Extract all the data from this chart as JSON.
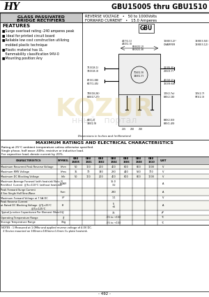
{
  "title": "GBU15005 thru GBU1510",
  "box1_title": "GLASS PASSIVATED",
  "box1_sub": "BRIDGE RECTIFIERS",
  "box2_line1": "REVERSE VOLTAGE   •   50 to 1000Volts",
  "box2_line2": "FORWARD CURRENT   •   15.0 Amperes",
  "features_title": "FEATURES",
  "features": [
    "■Surge overload rating -240 amperes peak",
    "■ Ideal for printed circuit board",
    "■Reliable low cost construction utilizing",
    "   molded plastic technique",
    "■Plastic material has UL",
    "   flammability classification 94V-0",
    "■Mounting position:Any"
  ],
  "diagram_title": "GBU",
  "max_ratings_title": "MAXIMUM RATINGS AND ELECTRICAL CHARACTERISTICS",
  "rating_note1": "Rating at 25°C ambient temperature unless otherwise specified.",
  "rating_note2": "Single phase, half wave ,60Hz, resistive or inductive load.",
  "rating_note3": "For capacitive load, derate current by 20%.",
  "table_headers": [
    "CHARACTERISTICS",
    "SYMBOL",
    "GBU\n15005",
    "GBU\n1501",
    "GBU\n1502",
    "GBU\n1504",
    "GBU\n1506",
    "GBU\n1508",
    "GBU\n1510",
    "UNIT"
  ],
  "table_rows": [
    [
      "Maximum Recurrent Peak Reverse Voltage",
      "Vrrm",
      "50",
      "100",
      "200",
      "400",
      "600",
      "800",
      "1000",
      "V"
    ],
    [
      "Maximum RMS Voltage",
      "Vrms",
      "35",
      "70",
      "140",
      "280",
      "420",
      "560",
      "700",
      "V"
    ],
    [
      "Maximum DC Blocking Voltage",
      "Vdc",
      "50",
      "100",
      "200",
      "400",
      "600",
      "800",
      "1000",
      "V"
    ],
    [
      "Maximum Average Forward (with heatsink Note 2)\nRectified  Current  @Tc=110°C (without heatsink)",
      "Io(AV)",
      "",
      "",
      "",
      "15.0\n3.2",
      "",
      "",
      "",
      "A"
    ],
    [
      "Peak Forward Surge Current\n4 Sec Single Half Sine-Wave",
      "Ifsm",
      "",
      "",
      "",
      "240",
      "",
      "",
      "",
      "A"
    ],
    [
      "Maximum Forward Voltage at 7.5A DC",
      "VF",
      "",
      "",
      "",
      "1.1",
      "",
      "",
      "",
      "V"
    ],
    [
      "Peak Reverse Current\nat Rated DC Blocking Voltage  @Tj=25°C\n                                       @Tj=125°C",
      "IR",
      "",
      "",
      "",
      "5\n<5",
      "",
      "",
      "",
      "A"
    ],
    [
      "Typical Junction Capacitance Per Element (Note1)",
      "Cj",
      "",
      "",
      "",
      "70",
      "",
      "",
      "",
      "pF"
    ],
    [
      "Operating Temperature Range",
      "Tj",
      "",
      "",
      "",
      "-55 to +150",
      "",
      "",
      "",
      "°C"
    ],
    [
      "Storage Temperature Range",
      "Tstg",
      "",
      "",
      "",
      "-55 to +150",
      "",
      "",
      "",
      "°C"
    ]
  ],
  "notes": [
    "NOTES : 1 Measured at 1.0Mhz and applied reverse voltage of 4.0V DC.",
    "  2 Device mounted on 100mm×100mm×1.6mm Cu plate heatsink."
  ],
  "bg_color": "#ffffff",
  "header_gray": "#c8c8c8",
  "row_alt": "#f5f5f0"
}
